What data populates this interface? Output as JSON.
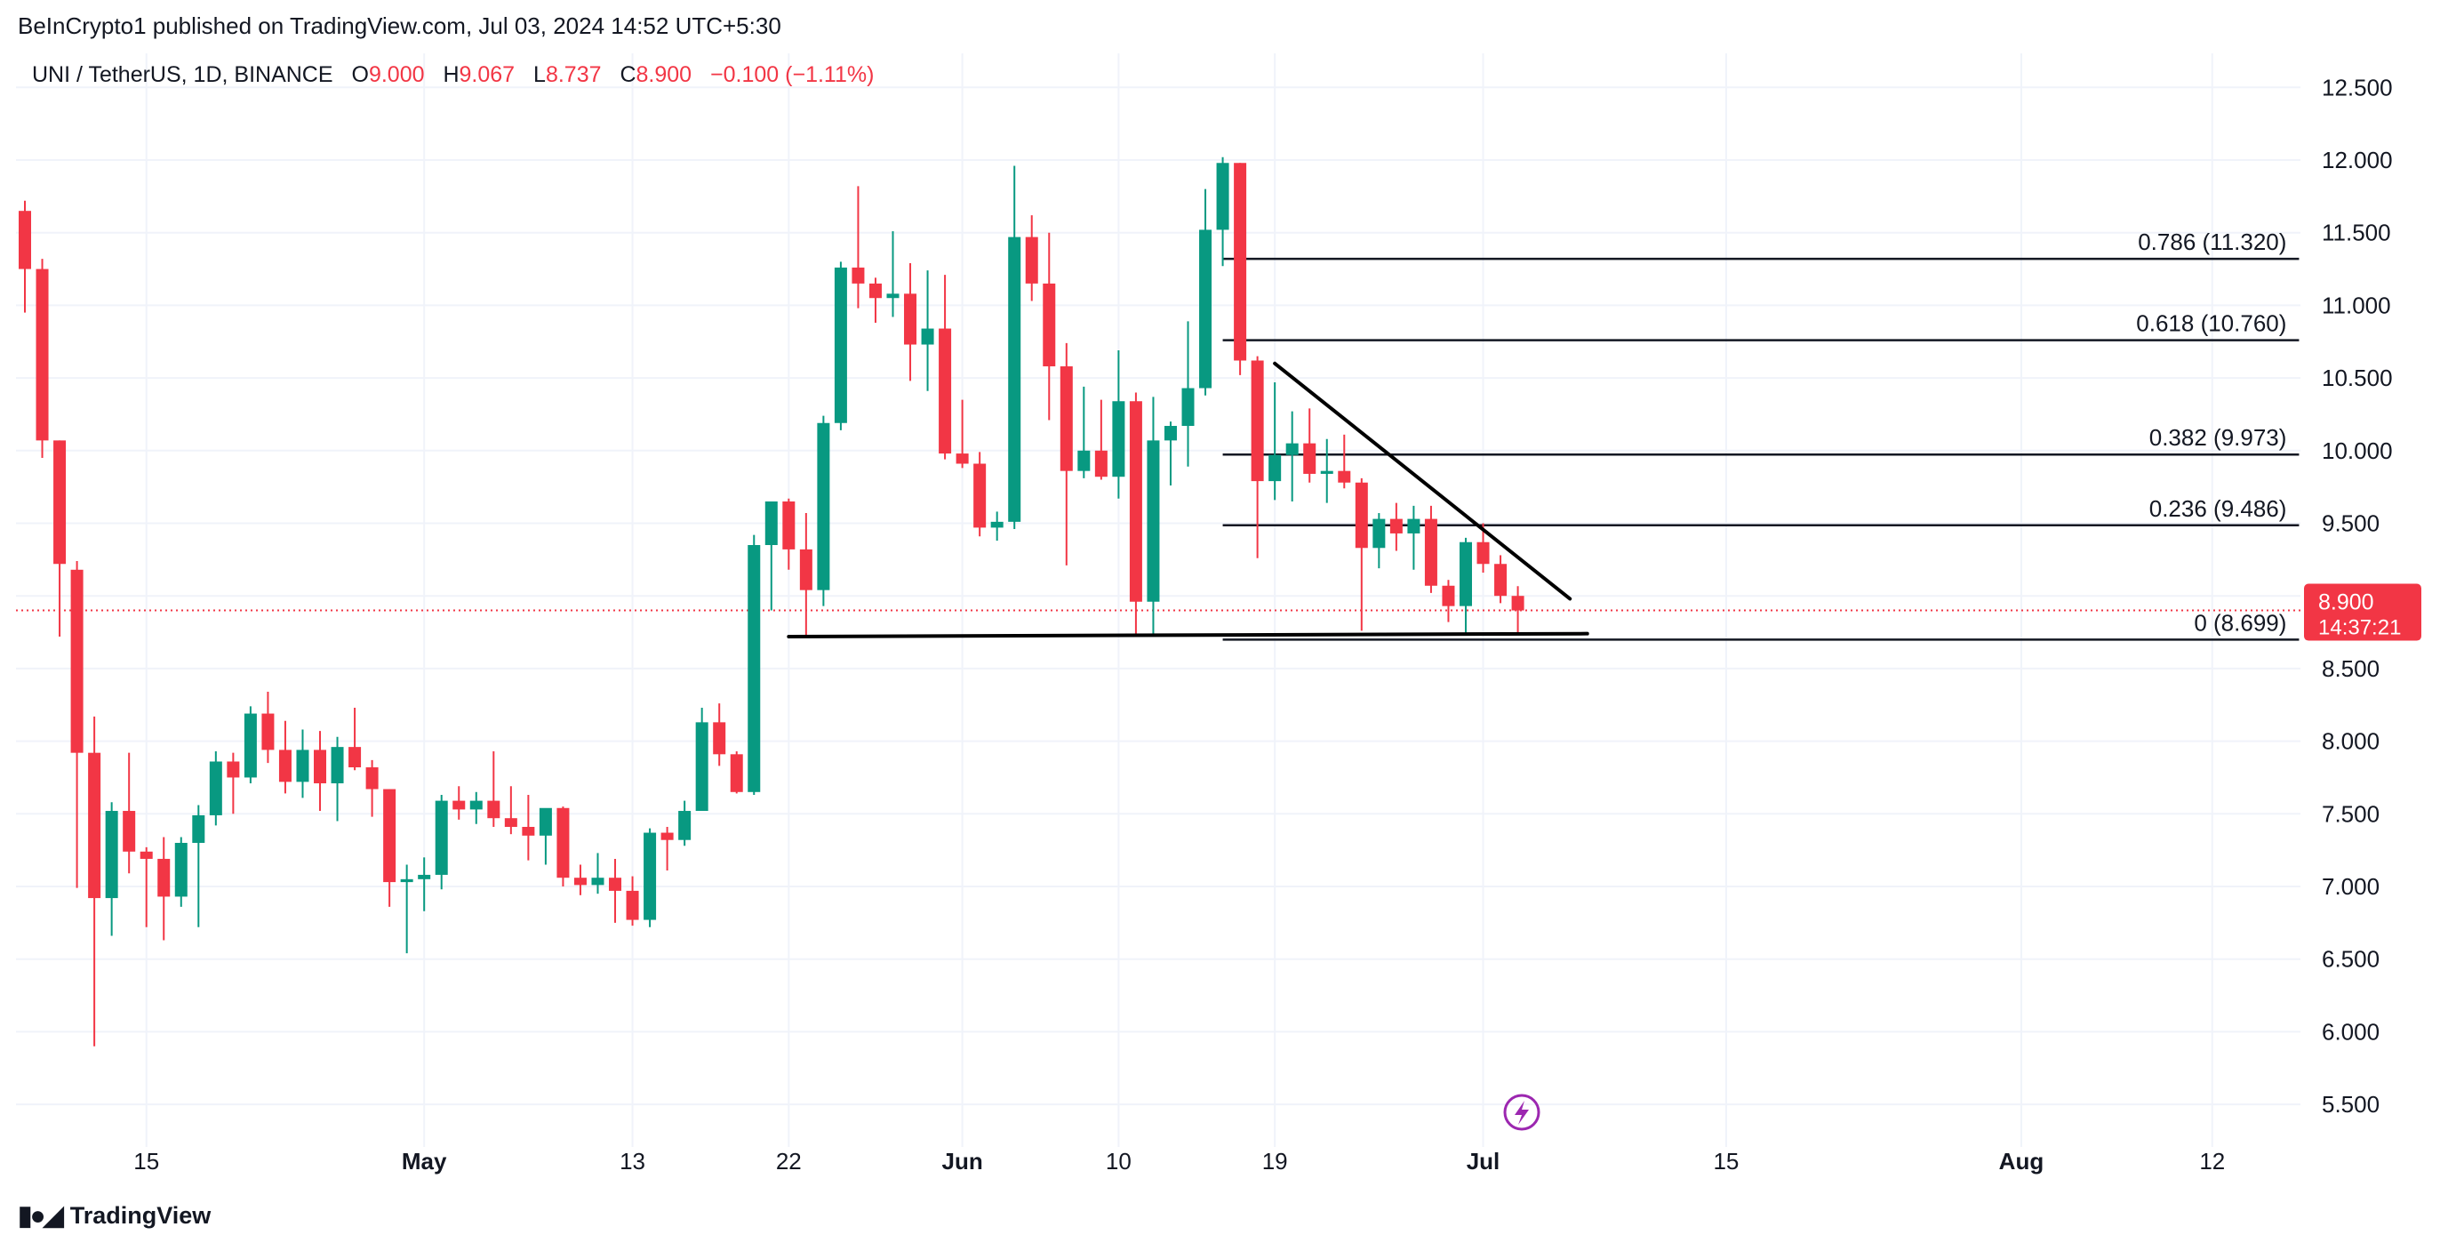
{
  "header": {
    "published_by": "BeInCrypto1 published on TradingView.com, Jul 03, 2024 14:52 UTC+5:30"
  },
  "legend": {
    "symbol": "UNI / TetherUS, 1D, BINANCE",
    "open_label": "O",
    "open": "9.000",
    "high_label": "H",
    "high": "9.067",
    "low_label": "L",
    "low": "8.737",
    "close_label": "C",
    "close": "8.900",
    "change": "−0.100 (−1.11%)"
  },
  "price_badge": {
    "price": "8.900",
    "countdown": "14:37:21"
  },
  "footer": {
    "brand": "TradingView"
  },
  "colors": {
    "up": "#089981",
    "down": "#f23645",
    "grid": "#f0f3fa",
    "text": "#131722",
    "lightning": "#9c27b0"
  },
  "chart_data": {
    "type": "candlestick",
    "interval": "1D",
    "yaxis": {
      "min": 5.3,
      "max": 12.65,
      "ticks": [
        "5.500",
        "6.000",
        "6.500",
        "7.000",
        "7.500",
        "8.000",
        "8.500",
        "9.000",
        "9.500",
        "10.000",
        "10.500",
        "11.000",
        "11.500",
        "12.000",
        "12.500"
      ]
    },
    "x_ticks": [
      {
        "label": "15",
        "date": "2024-04-15"
      },
      {
        "label": "May",
        "date": "2024-05-01"
      },
      {
        "label": "13",
        "date": "2024-05-13"
      },
      {
        "label": "22",
        "date": "2024-05-22"
      },
      {
        "label": "Jun",
        "date": "2024-06-01"
      },
      {
        "label": "10",
        "date": "2024-06-10"
      },
      {
        "label": "19",
        "date": "2024-06-19"
      },
      {
        "label": "Jul",
        "date": "2024-07-01"
      },
      {
        "label": "15",
        "date": "2024-07-15"
      },
      {
        "label": "Aug",
        "date": "2024-08-01"
      },
      {
        "label": "12",
        "date": "2024-08-12"
      }
    ],
    "first_date": "2024-04-08",
    "candles": [
      {
        "date": "2024-04-08",
        "o": 11.65,
        "h": 11.72,
        "l": 10.95,
        "c": 11.25
      },
      {
        "date": "2024-04-09",
        "o": 11.25,
        "h": 11.32,
        "l": 9.95,
        "c": 10.07
      },
      {
        "date": "2024-04-10",
        "o": 10.07,
        "h": 10.07,
        "l": 8.72,
        "c": 9.22
      },
      {
        "date": "2024-04-11",
        "o": 9.18,
        "h": 9.24,
        "l": 6.99,
        "c": 7.92
      },
      {
        "date": "2024-04-12",
        "o": 7.92,
        "h": 8.17,
        "l": 5.9,
        "c": 6.92
      },
      {
        "date": "2024-04-13",
        "o": 6.92,
        "h": 7.58,
        "l": 6.66,
        "c": 7.52
      },
      {
        "date": "2024-04-14",
        "o": 7.52,
        "h": 7.92,
        "l": 7.09,
        "c": 7.24
      },
      {
        "date": "2024-04-15",
        "o": 7.24,
        "h": 7.27,
        "l": 6.72,
        "c": 7.19
      },
      {
        "date": "2024-04-16",
        "o": 7.19,
        "h": 7.34,
        "l": 6.63,
        "c": 6.93
      },
      {
        "date": "2024-04-17",
        "o": 6.93,
        "h": 7.34,
        "l": 6.86,
        "c": 7.3
      },
      {
        "date": "2024-04-18",
        "o": 7.3,
        "h": 7.56,
        "l": 6.72,
        "c": 7.49
      },
      {
        "date": "2024-04-19",
        "o": 7.49,
        "h": 7.93,
        "l": 7.42,
        "c": 7.86
      },
      {
        "date": "2024-04-20",
        "o": 7.86,
        "h": 7.92,
        "l": 7.5,
        "c": 7.75
      },
      {
        "date": "2024-04-21",
        "o": 7.75,
        "h": 8.24,
        "l": 7.71,
        "c": 8.19
      },
      {
        "date": "2024-04-22",
        "o": 8.19,
        "h": 8.34,
        "l": 7.85,
        "c": 7.94
      },
      {
        "date": "2024-04-23",
        "o": 7.94,
        "h": 8.14,
        "l": 7.64,
        "c": 7.72
      },
      {
        "date": "2024-04-24",
        "o": 7.72,
        "h": 8.08,
        "l": 7.61,
        "c": 7.94
      },
      {
        "date": "2024-04-25",
        "o": 7.94,
        "h": 8.07,
        "l": 7.52,
        "c": 7.71
      },
      {
        "date": "2024-04-26",
        "o": 7.71,
        "h": 8.03,
        "l": 7.45,
        "c": 7.96
      },
      {
        "date": "2024-04-27",
        "o": 7.96,
        "h": 8.23,
        "l": 7.8,
        "c": 7.82
      },
      {
        "date": "2024-04-28",
        "o": 7.82,
        "h": 7.87,
        "l": 7.48,
        "c": 7.67
      },
      {
        "date": "2024-04-29",
        "o": 7.67,
        "h": 7.67,
        "l": 6.86,
        "c": 7.03
      },
      {
        "date": "2024-04-30",
        "o": 7.03,
        "h": 7.15,
        "l": 6.54,
        "c": 7.05
      },
      {
        "date": "2024-05-01",
        "o": 7.05,
        "h": 7.2,
        "l": 6.83,
        "c": 7.08
      },
      {
        "date": "2024-05-02",
        "o": 7.08,
        "h": 7.63,
        "l": 6.98,
        "c": 7.59
      },
      {
        "date": "2024-05-03",
        "o": 7.59,
        "h": 7.69,
        "l": 7.46,
        "c": 7.53
      },
      {
        "date": "2024-05-04",
        "o": 7.53,
        "h": 7.65,
        "l": 7.43,
        "c": 7.59
      },
      {
        "date": "2024-05-05",
        "o": 7.59,
        "h": 7.93,
        "l": 7.41,
        "c": 7.47
      },
      {
        "date": "2024-05-06",
        "o": 7.47,
        "h": 7.69,
        "l": 7.36,
        "c": 7.41
      },
      {
        "date": "2024-05-07",
        "o": 7.41,
        "h": 7.63,
        "l": 7.18,
        "c": 7.35
      },
      {
        "date": "2024-05-08",
        "o": 7.35,
        "h": 7.53,
        "l": 7.15,
        "c": 7.54
      },
      {
        "date": "2024-05-09",
        "o": 7.54,
        "h": 7.55,
        "l": 7.0,
        "c": 7.06
      },
      {
        "date": "2024-05-10",
        "o": 7.06,
        "h": 7.15,
        "l": 6.94,
        "c": 7.01
      },
      {
        "date": "2024-05-11",
        "o": 7.01,
        "h": 7.23,
        "l": 6.95,
        "c": 7.06
      },
      {
        "date": "2024-05-12",
        "o": 7.06,
        "h": 7.19,
        "l": 6.75,
        "c": 6.97
      },
      {
        "date": "2024-05-13",
        "o": 6.97,
        "h": 7.07,
        "l": 6.73,
        "c": 6.77
      },
      {
        "date": "2024-05-14",
        "o": 6.77,
        "h": 7.4,
        "l": 6.72,
        "c": 7.37
      },
      {
        "date": "2024-05-15",
        "o": 7.37,
        "h": 7.41,
        "l": 7.11,
        "c": 7.32
      },
      {
        "date": "2024-05-16",
        "o": 7.32,
        "h": 7.59,
        "l": 7.28,
        "c": 7.52
      },
      {
        "date": "2024-05-17",
        "o": 7.52,
        "h": 8.23,
        "l": 7.54,
        "c": 8.13
      },
      {
        "date": "2024-05-18",
        "o": 8.13,
        "h": 8.26,
        "l": 7.83,
        "c": 7.91
      },
      {
        "date": "2024-05-19",
        "o": 7.91,
        "h": 7.93,
        "l": 7.64,
        "c": 7.65
      },
      {
        "date": "2024-05-20",
        "o": 7.65,
        "h": 9.42,
        "l": 7.63,
        "c": 9.35
      },
      {
        "date": "2024-05-21",
        "o": 9.35,
        "h": 9.65,
        "l": 8.9,
        "c": 9.65
      },
      {
        "date": "2024-05-22",
        "o": 9.65,
        "h": 9.67,
        "l": 9.18,
        "c": 9.32
      },
      {
        "date": "2024-05-23",
        "o": 9.32,
        "h": 9.57,
        "l": 8.73,
        "c": 9.04
      },
      {
        "date": "2024-05-24",
        "o": 9.04,
        "h": 10.24,
        "l": 8.93,
        "c": 10.19
      },
      {
        "date": "2024-05-25",
        "o": 10.19,
        "h": 11.3,
        "l": 10.14,
        "c": 11.26
      },
      {
        "date": "2024-05-26",
        "o": 11.26,
        "h": 11.82,
        "l": 10.98,
        "c": 11.15
      },
      {
        "date": "2024-05-27",
        "o": 11.15,
        "h": 11.19,
        "l": 10.88,
        "c": 11.05
      },
      {
        "date": "2024-05-28",
        "o": 11.05,
        "h": 11.51,
        "l": 10.92,
        "c": 11.08
      },
      {
        "date": "2024-05-29",
        "o": 11.08,
        "h": 11.29,
        "l": 10.48,
        "c": 10.73
      },
      {
        "date": "2024-05-30",
        "o": 10.73,
        "h": 11.24,
        "l": 10.41,
        "c": 10.84
      },
      {
        "date": "2024-05-31",
        "o": 10.84,
        "h": 11.21,
        "l": 9.94,
        "c": 9.98
      },
      {
        "date": "2024-06-01",
        "o": 9.98,
        "h": 10.35,
        "l": 9.88,
        "c": 9.91
      },
      {
        "date": "2024-06-02",
        "o": 9.91,
        "h": 9.99,
        "l": 9.41,
        "c": 9.47
      },
      {
        "date": "2024-06-03",
        "o": 9.47,
        "h": 9.58,
        "l": 9.38,
        "c": 9.51
      },
      {
        "date": "2024-06-04",
        "o": 9.51,
        "h": 11.96,
        "l": 9.46,
        "c": 11.47
      },
      {
        "date": "2024-06-05",
        "o": 11.47,
        "h": 11.62,
        "l": 11.03,
        "c": 11.15
      },
      {
        "date": "2024-06-06",
        "o": 11.15,
        "h": 11.5,
        "l": 10.21,
        "c": 10.58
      },
      {
        "date": "2024-06-07",
        "o": 10.58,
        "h": 10.74,
        "l": 9.21,
        "c": 9.86
      },
      {
        "date": "2024-06-08",
        "o": 9.86,
        "h": 10.44,
        "l": 9.81,
        "c": 10.0
      },
      {
        "date": "2024-06-09",
        "o": 10.0,
        "h": 10.35,
        "l": 9.8,
        "c": 9.82
      },
      {
        "date": "2024-06-10",
        "o": 9.82,
        "h": 10.69,
        "l": 9.67,
        "c": 10.34
      },
      {
        "date": "2024-06-11",
        "o": 10.34,
        "h": 10.4,
        "l": 8.74,
        "c": 8.96
      },
      {
        "date": "2024-06-12",
        "o": 8.96,
        "h": 10.37,
        "l": 8.74,
        "c": 10.07
      },
      {
        "date": "2024-06-13",
        "o": 10.07,
        "h": 10.2,
        "l": 9.76,
        "c": 10.17
      },
      {
        "date": "2024-06-14",
        "o": 10.17,
        "h": 10.89,
        "l": 9.89,
        "c": 10.43
      },
      {
        "date": "2024-06-15",
        "o": 10.43,
        "h": 11.8,
        "l": 10.38,
        "c": 11.52
      },
      {
        "date": "2024-06-16",
        "o": 11.52,
        "h": 12.02,
        "l": 11.27,
        "c": 11.98
      },
      {
        "date": "2024-06-17",
        "o": 11.98,
        "h": 11.98,
        "l": 10.52,
        "c": 10.62
      },
      {
        "date": "2024-06-18",
        "o": 10.62,
        "h": 10.65,
        "l": 9.26,
        "c": 9.79
      },
      {
        "date": "2024-06-19",
        "o": 9.79,
        "h": 10.47,
        "l": 9.66,
        "c": 9.97
      },
      {
        "date": "2024-06-20",
        "o": 9.97,
        "h": 10.27,
        "l": 9.65,
        "c": 10.05
      },
      {
        "date": "2024-06-21",
        "o": 10.05,
        "h": 10.29,
        "l": 9.78,
        "c": 9.84
      },
      {
        "date": "2024-06-22",
        "o": 9.84,
        "h": 10.08,
        "l": 9.64,
        "c": 9.86
      },
      {
        "date": "2024-06-23",
        "o": 9.86,
        "h": 10.11,
        "l": 9.74,
        "c": 9.78
      },
      {
        "date": "2024-06-24",
        "o": 9.78,
        "h": 9.81,
        "l": 8.76,
        "c": 9.33
      },
      {
        "date": "2024-06-25",
        "o": 9.33,
        "h": 9.57,
        "l": 9.19,
        "c": 9.53
      },
      {
        "date": "2024-06-26",
        "o": 9.53,
        "h": 9.64,
        "l": 9.31,
        "c": 9.43
      },
      {
        "date": "2024-06-27",
        "o": 9.43,
        "h": 9.62,
        "l": 9.18,
        "c": 9.53
      },
      {
        "date": "2024-06-28",
        "o": 9.53,
        "h": 9.62,
        "l": 9.02,
        "c": 9.07
      },
      {
        "date": "2024-06-29",
        "o": 9.07,
        "h": 9.11,
        "l": 8.82,
        "c": 8.93
      },
      {
        "date": "2024-06-30",
        "o": 8.93,
        "h": 9.4,
        "l": 8.74,
        "c": 9.37
      },
      {
        "date": "2024-07-01",
        "o": 9.37,
        "h": 9.5,
        "l": 9.16,
        "c": 9.22
      },
      {
        "date": "2024-07-02",
        "o": 9.22,
        "h": 9.28,
        "l": 8.95,
        "c": 9.0
      },
      {
        "date": "2024-07-03",
        "o": 9.0,
        "h": 9.067,
        "l": 8.737,
        "c": 8.9
      }
    ],
    "last_price": 8.9,
    "fib_levels": [
      {
        "ratio": "0.786",
        "price": 11.32,
        "label": "0.786 (11.320)"
      },
      {
        "ratio": "0.618",
        "price": 10.76,
        "label": "0.618 (10.760)"
      },
      {
        "ratio": "0.382",
        "price": 9.973,
        "label": "0.382 (9.973)"
      },
      {
        "ratio": "0.236",
        "price": 9.486,
        "label": "0.236 (9.486)"
      },
      {
        "ratio": "0",
        "price": 8.699,
        "label": "0 (8.699)"
      }
    ],
    "fib_start_date": "2024-06-16",
    "fib_end_date": "2024-08-17",
    "trendlines": [
      {
        "name": "descending-resistance",
        "from": {
          "date": "2024-06-19",
          "price": 10.6
        },
        "to": {
          "date": "2024-07-06",
          "price": 8.98
        }
      },
      {
        "name": "horizontal-support",
        "from": {
          "date": "2024-05-22",
          "price": 8.72
        },
        "to": {
          "date": "2024-07-07",
          "price": 8.74
        }
      }
    ]
  }
}
